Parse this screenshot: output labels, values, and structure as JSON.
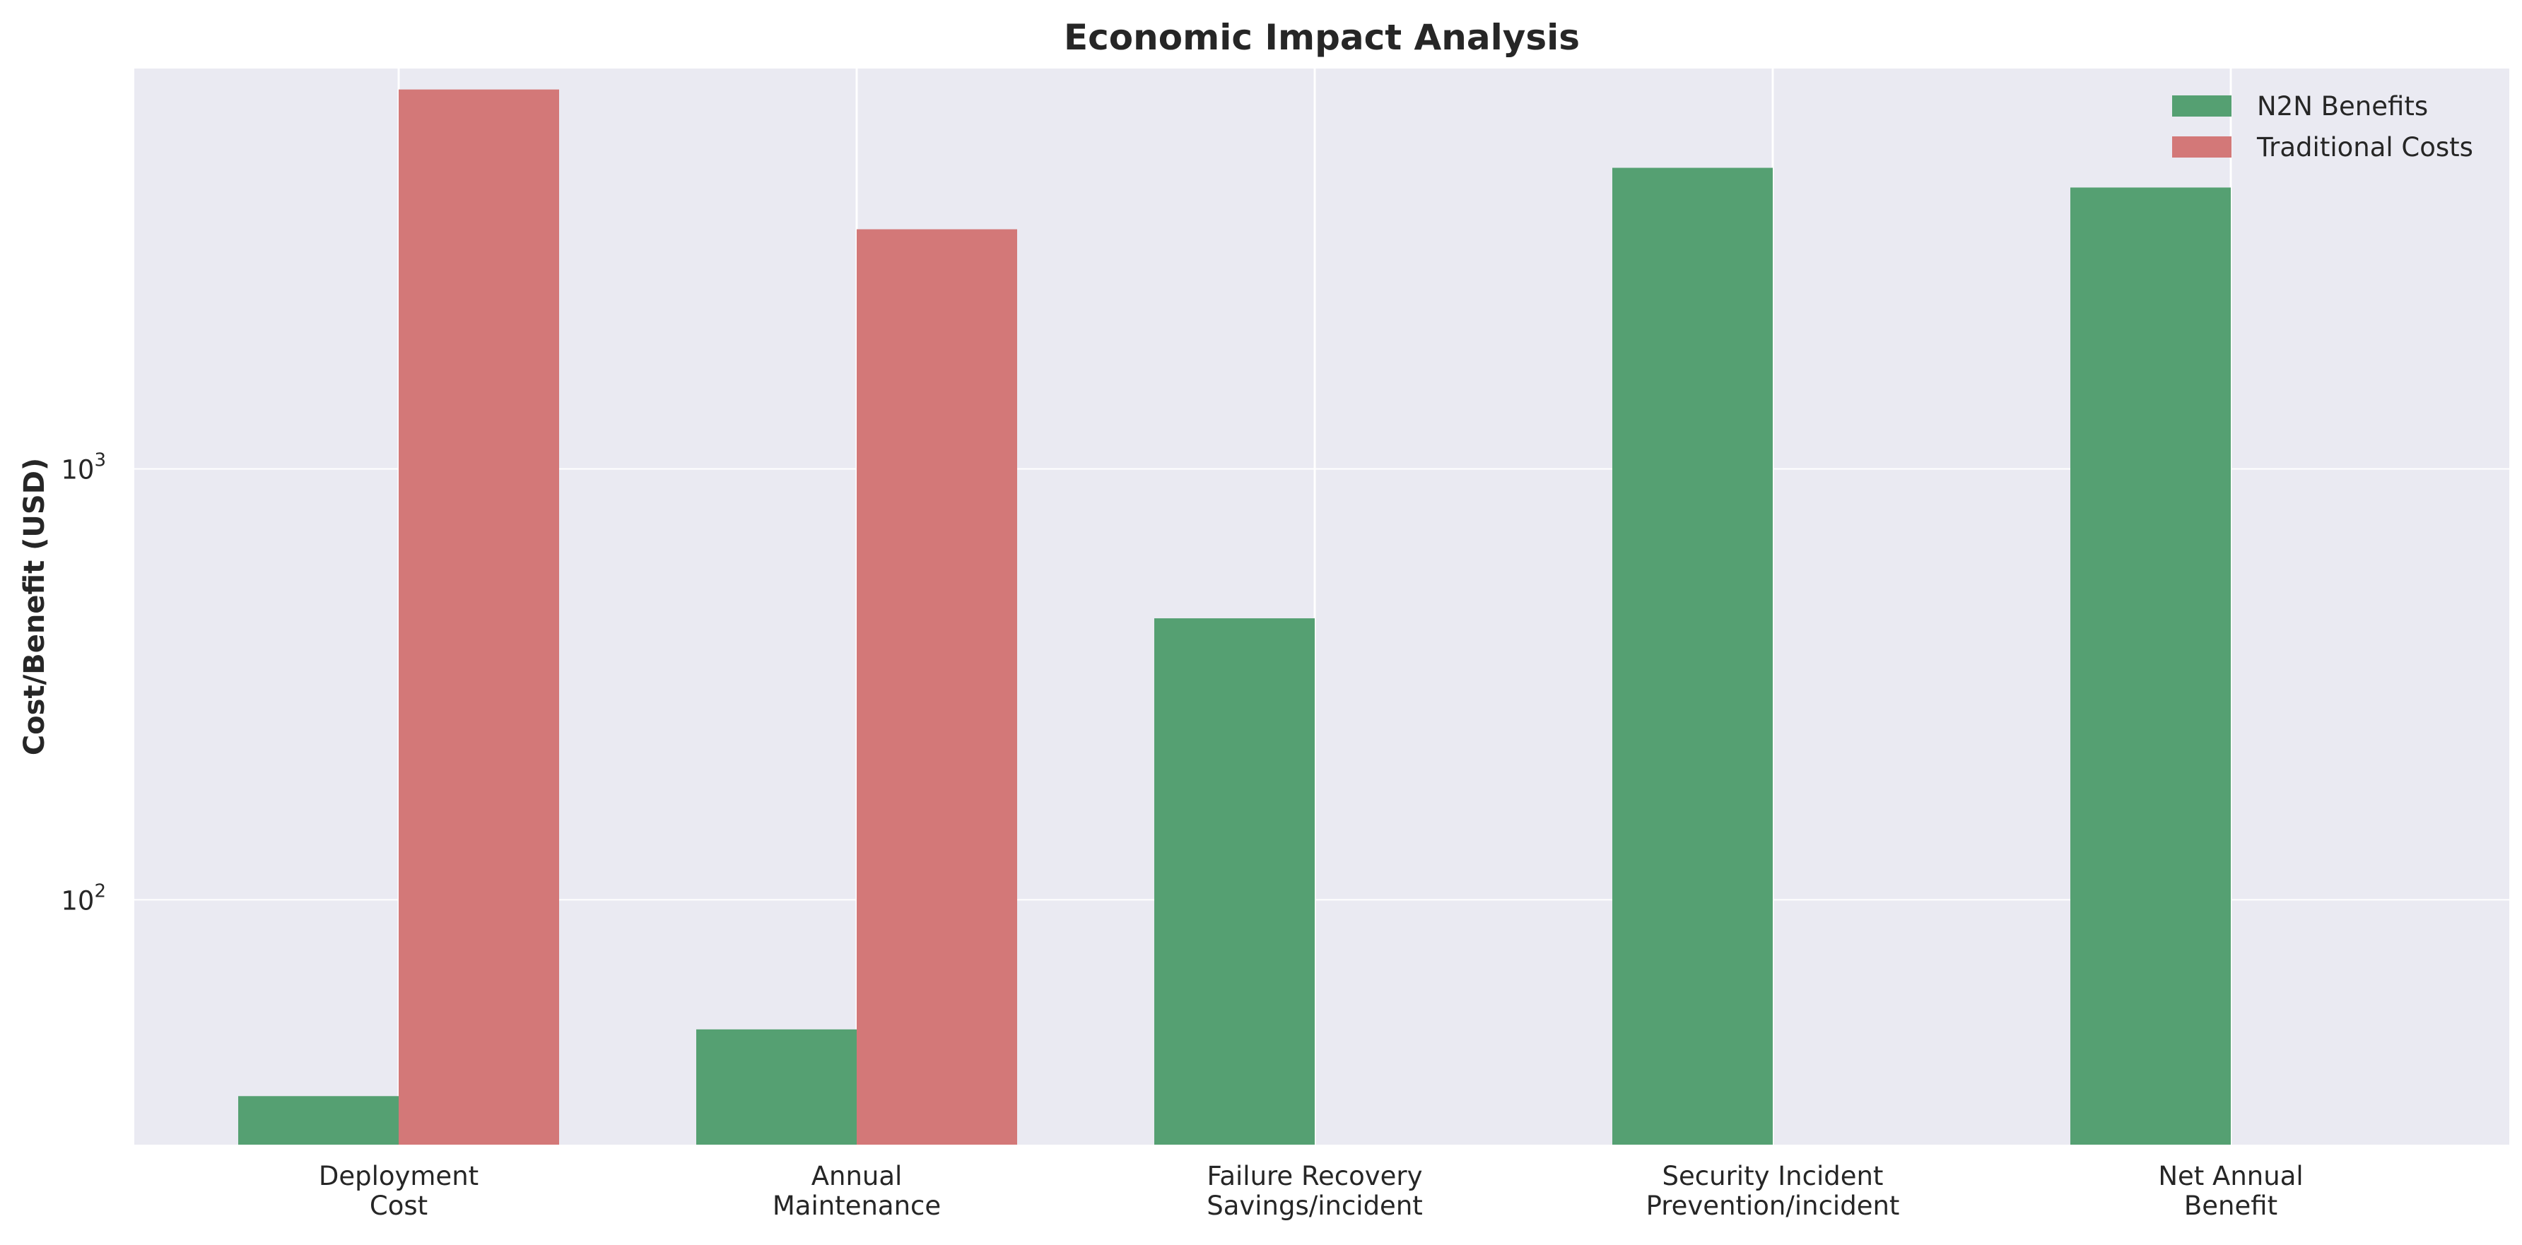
{
  "chart_data": {
    "type": "bar",
    "title": "Economic Impact Analysis",
    "xlabel": "",
    "ylabel": "Cost/Benefit (USD)",
    "yscale": "log",
    "ylim": [
      27,
      8500
    ],
    "yticks": [
      {
        "value": 100,
        "base": "10",
        "exp": "2"
      },
      {
        "value": 1000,
        "base": "10",
        "exp": "3"
      }
    ],
    "grid": true,
    "legend_position": "top-right",
    "categories": [
      [
        "Deployment",
        "Cost"
      ],
      [
        "Annual",
        "Maintenance"
      ],
      [
        "Failure Recovery",
        "Savings/incident"
      ],
      [
        "Security Incident",
        "Prevention/incident"
      ],
      [
        "Net Annual",
        "Benefit"
      ]
    ],
    "series": [
      {
        "name": "N2N Benefits",
        "color": "#55a072",
        "values": [
          35,
          50,
          450,
          5000,
          4500
        ]
      },
      {
        "name": "Traditional Costs",
        "color": "#d37878",
        "values": [
          7600,
          3600,
          null,
          null,
          null
        ]
      }
    ],
    "background": "#eaeaf2"
  }
}
